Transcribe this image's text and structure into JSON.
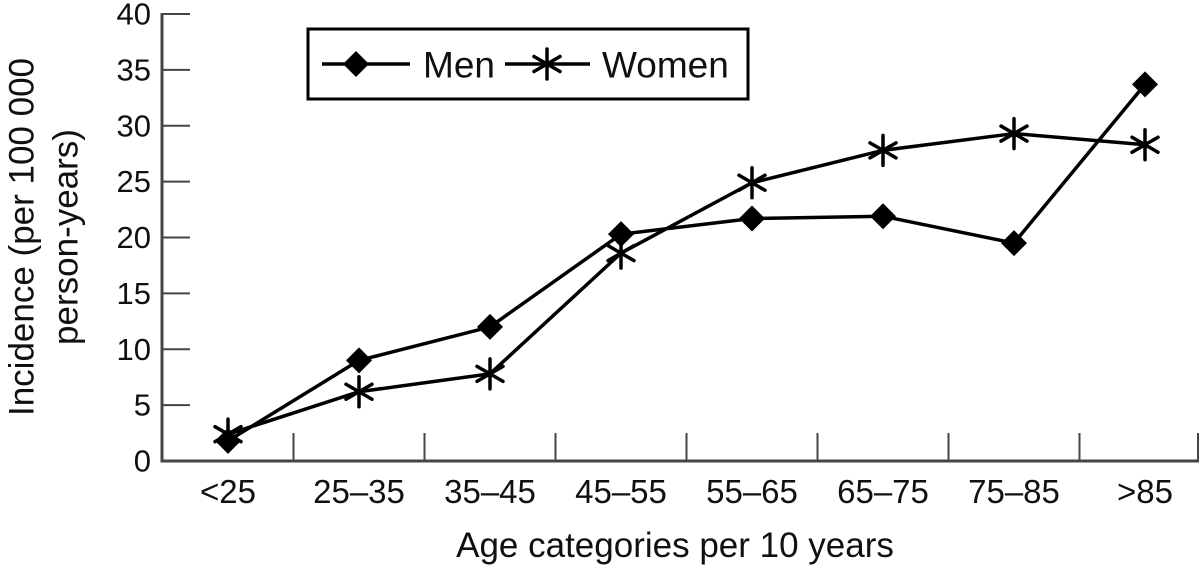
{
  "chart_data": {
    "type": "line",
    "title": "",
    "xlabel": "Age categories per 10 years",
    "ylabel": "Incidence (per 100 000 person-years)",
    "ylabel_lines": [
      "Incidence (per 100 000",
      "person-years)"
    ],
    "categories": [
      "<25",
      "25–35",
      "35–45",
      "45–55",
      "55–65",
      "65–75",
      "75–85",
      ">85"
    ],
    "yticks": [
      0,
      5,
      10,
      15,
      20,
      25,
      30,
      35,
      40
    ],
    "ylim": [
      0,
      40
    ],
    "grid": false,
    "legend": {
      "position": "top-center",
      "entries": [
        "Men",
        "Women"
      ]
    },
    "series": [
      {
        "name": "Men",
        "marker": "diamond",
        "color": "#000000",
        "values": [
          1.8,
          9.0,
          12.0,
          20.3,
          21.7,
          21.9,
          19.5,
          33.7
        ]
      },
      {
        "name": "Women",
        "marker": "asterisk",
        "color": "#000000",
        "values": [
          2.4,
          6.2,
          7.8,
          18.6,
          24.9,
          27.8,
          29.3,
          28.3
        ]
      }
    ],
    "colors": {
      "series": "#000000",
      "axis": "#454545",
      "text": "#101010",
      "background": "#ffffff"
    }
  }
}
